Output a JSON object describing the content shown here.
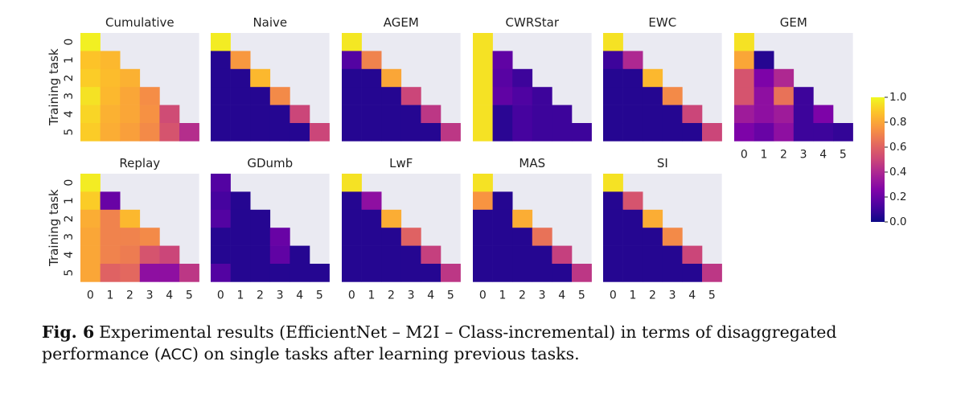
{
  "chart_data": {
    "type": "heatmap",
    "ylabel": "Training task",
    "tick_labels": [
      "0",
      "1",
      "2",
      "3",
      "4",
      "5"
    ],
    "colormap": "plasma",
    "vmin": 0.0,
    "vmax": 1.0,
    "colorbar_ticks": [
      "0.0",
      "0.2",
      "0.4",
      "0.6",
      "0.8",
      "1.0"
    ],
    "panels": [
      {
        "title": "Cumulative",
        "values": [
          [
            0.98
          ],
          [
            0.88,
            0.85
          ],
          [
            0.9,
            0.86,
            0.83
          ],
          [
            0.95,
            0.85,
            0.8,
            0.73
          ],
          [
            0.92,
            0.83,
            0.8,
            0.74,
            0.52
          ],
          [
            0.9,
            0.82,
            0.78,
            0.72,
            0.55,
            0.42
          ]
        ]
      },
      {
        "title": "Naive",
        "values": [
          [
            0.97
          ],
          [
            0.05,
            0.76
          ],
          [
            0.05,
            0.05,
            0.85
          ],
          [
            0.05,
            0.05,
            0.05,
            0.72
          ],
          [
            0.05,
            0.05,
            0.05,
            0.05,
            0.5
          ],
          [
            0.05,
            0.05,
            0.05,
            0.05,
            0.05,
            0.5
          ]
        ]
      },
      {
        "title": "AGEM",
        "values": [
          [
            0.96
          ],
          [
            0.15,
            0.7
          ],
          [
            0.05,
            0.05,
            0.8
          ],
          [
            0.05,
            0.05,
            0.05,
            0.5
          ],
          [
            0.05,
            0.05,
            0.05,
            0.05,
            0.45
          ],
          [
            0.05,
            0.05,
            0.05,
            0.05,
            0.05,
            0.45
          ]
        ]
      },
      {
        "title": "CWRStar",
        "values": [
          [
            0.95
          ],
          [
            0.95,
            0.18
          ],
          [
            0.95,
            0.16,
            0.1
          ],
          [
            0.95,
            0.18,
            0.14,
            0.1
          ],
          [
            0.95,
            0.06,
            0.12,
            0.1,
            0.1
          ],
          [
            0.95,
            0.06,
            0.12,
            0.1,
            0.1,
            0.1
          ]
        ]
      },
      {
        "title": "EWC",
        "values": [
          [
            0.95
          ],
          [
            0.1,
            0.4
          ],
          [
            0.05,
            0.05,
            0.85
          ],
          [
            0.05,
            0.05,
            0.05,
            0.72
          ],
          [
            0.05,
            0.05,
            0.05,
            0.05,
            0.5
          ],
          [
            0.05,
            0.05,
            0.05,
            0.05,
            0.05,
            0.5
          ]
        ]
      },
      {
        "title": "GEM",
        "values": [
          [
            0.95
          ],
          [
            0.8,
            0.05
          ],
          [
            0.55,
            0.25,
            0.4
          ],
          [
            0.55,
            0.3,
            0.65,
            0.1
          ],
          [
            0.35,
            0.3,
            0.35,
            0.1,
            0.25
          ],
          [
            0.25,
            0.2,
            0.3,
            0.1,
            0.1,
            0.08
          ]
        ]
      },
      {
        "title": "Replay",
        "values": [
          [
            0.97
          ],
          [
            0.9,
            0.2
          ],
          [
            0.82,
            0.7,
            0.85
          ],
          [
            0.8,
            0.7,
            0.7,
            0.72
          ],
          [
            0.8,
            0.7,
            0.68,
            0.55,
            0.5
          ],
          [
            0.8,
            0.6,
            0.62,
            0.3,
            0.3,
            0.45
          ]
        ]
      },
      {
        "title": "GDumb",
        "values": [
          [
            0.15
          ],
          [
            0.12,
            0.05
          ],
          [
            0.15,
            0.05,
            0.05
          ],
          [
            0.05,
            0.05,
            0.05,
            0.2
          ],
          [
            0.05,
            0.05,
            0.05,
            0.18,
            0.05
          ],
          [
            0.15,
            0.05,
            0.05,
            0.05,
            0.05,
            0.05
          ]
        ]
      },
      {
        "title": "LwF",
        "values": [
          [
            0.95
          ],
          [
            0.05,
            0.3
          ],
          [
            0.05,
            0.05,
            0.82
          ],
          [
            0.05,
            0.05,
            0.05,
            0.6
          ],
          [
            0.05,
            0.05,
            0.05,
            0.05,
            0.48
          ],
          [
            0.05,
            0.05,
            0.05,
            0.05,
            0.05,
            0.45
          ]
        ]
      },
      {
        "title": "MAS",
        "values": [
          [
            0.95
          ],
          [
            0.75,
            0.05
          ],
          [
            0.05,
            0.05,
            0.82
          ],
          [
            0.05,
            0.05,
            0.05,
            0.65
          ],
          [
            0.05,
            0.05,
            0.05,
            0.05,
            0.48
          ],
          [
            0.05,
            0.05,
            0.05,
            0.05,
            0.05,
            0.45
          ]
        ]
      },
      {
        "title": "SI",
        "values": [
          [
            0.95
          ],
          [
            0.05,
            0.55
          ],
          [
            0.05,
            0.05,
            0.82
          ],
          [
            0.05,
            0.05,
            0.05,
            0.72
          ],
          [
            0.05,
            0.05,
            0.05,
            0.05,
            0.5
          ],
          [
            0.05,
            0.05,
            0.05,
            0.05,
            0.05,
            0.45
          ]
        ]
      }
    ]
  },
  "caption": {
    "label": "Fig. 6",
    "before_acc": "Experimental results (EfficientNet – M2I – Class-incremental) in terms of disaggregated performance (",
    "acc": "ACC",
    "after_acc": ") on single tasks after learning previous tasks."
  }
}
